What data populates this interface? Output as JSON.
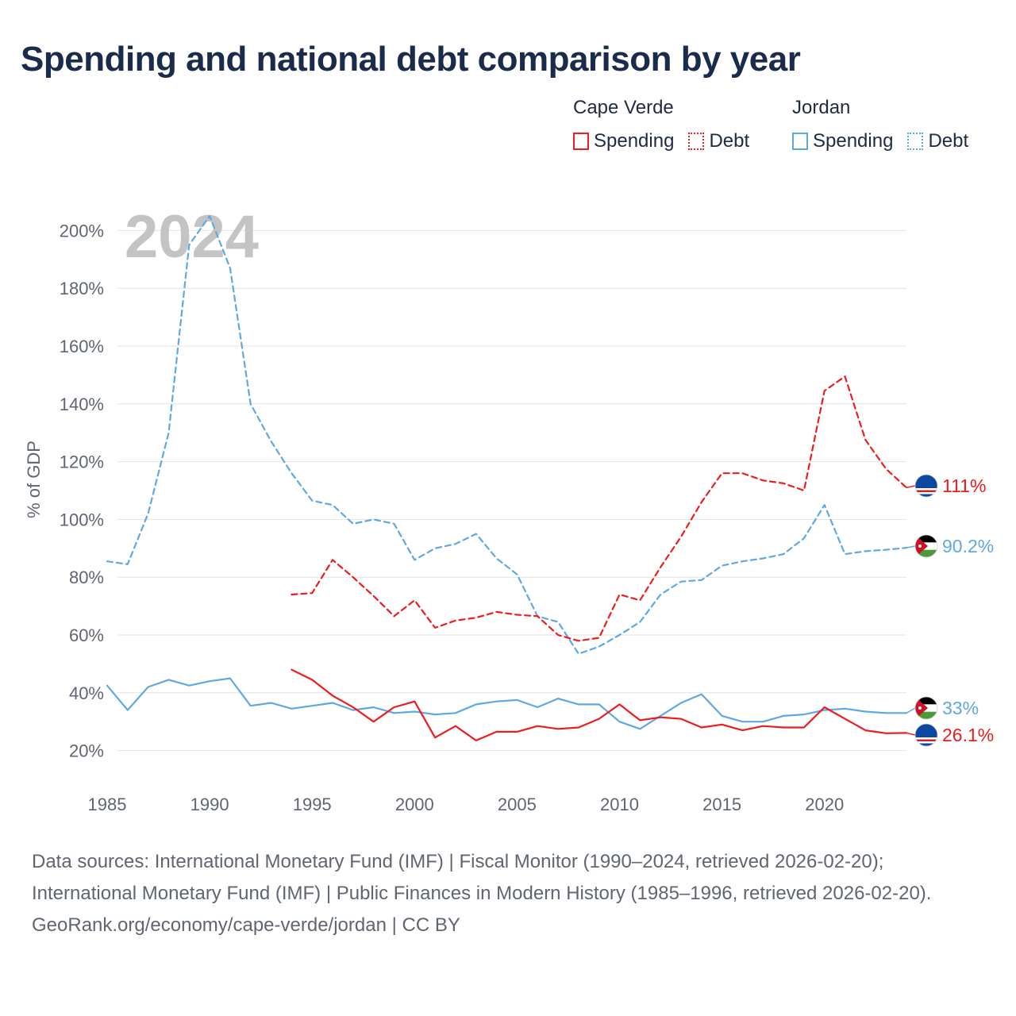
{
  "title": "Spending and national debt comparison by year",
  "legend": {
    "groups": [
      {
        "country": "Cape Verde",
        "items": [
          {
            "label": "Spending",
            "style": "solid"
          },
          {
            "label": "Debt",
            "style": "dotted"
          }
        ]
      },
      {
        "country": "Jordan",
        "items": [
          {
            "label": "Spending",
            "style": "solid"
          },
          {
            "label": "Debt",
            "style": "dotted"
          }
        ]
      }
    ]
  },
  "year_watermark": "2024",
  "footer": {
    "sources": "Data sources: International Monetary Fund (IMF) | Fiscal Monitor (1990–2024, retrieved 2026-02-20); International Monetary Fund (IMF) | Public Finances in Modern History (1985–1996, retrieved 2026-02-20).",
    "attribution": "GeoRank.org/economy/cape-verde/jordan | CC BY"
  },
  "colors": {
    "cape_verde": "#ee1c1c",
    "jordan": "#5ea8e6",
    "grid": "#e3e3e3",
    "axis_text": "#5f6670",
    "watermark": "#c4c4c4"
  },
  "chart_data": {
    "type": "line",
    "title": "Spending and national debt comparison by year",
    "xlabel": "",
    "ylabel": "% of GDP",
    "xlim": [
      1985,
      2024
    ],
    "ylim": [
      10,
      210
    ],
    "xticks": [
      1985,
      1990,
      1995,
      2000,
      2005,
      2010,
      2015,
      2020
    ],
    "yticks": [
      20,
      40,
      60,
      80,
      100,
      120,
      140,
      160,
      180,
      200
    ],
    "ytick_labels": [
      "20%",
      "40%",
      "60%",
      "80%",
      "100%",
      "120%",
      "140%",
      "160%",
      "180%",
      "200%"
    ],
    "grid": true,
    "series": [
      {
        "name": "Jordan Debt",
        "country": "Jordan",
        "metric": "Debt",
        "color": "#5ea8e6",
        "dash": "dashed",
        "end_label": "90.2%",
        "x": [
          1985,
          1986,
          1987,
          1988,
          1989,
          1990,
          1991,
          1992,
          1993,
          1994,
          1995,
          1996,
          1997,
          1998,
          1999,
          2000,
          2001,
          2002,
          2003,
          2004,
          2005,
          2006,
          2007,
          2008,
          2009,
          2010,
          2011,
          2012,
          2013,
          2014,
          2015,
          2016,
          2017,
          2018,
          2019,
          2020,
          2021,
          2022,
          2023,
          2024
        ],
        "values": [
          85.5,
          84.5,
          102,
          130,
          195,
          205,
          187,
          140,
          127,
          116,
          106.5,
          105,
          98.5,
          100,
          98.5,
          86,
          90,
          91.5,
          95,
          86.5,
          81,
          66.5,
          64.5,
          53.5,
          56,
          60,
          64.5,
          74,
          78.5,
          79,
          84,
          85.5,
          86.5,
          88,
          93.5,
          105,
          88,
          89,
          89.5,
          90.2
        ]
      },
      {
        "name": "Cape Verde Debt",
        "country": "Cape Verde",
        "metric": "Debt",
        "color": "#ee1c1c",
        "dash": "dashed",
        "end_label": "111%",
        "x": [
          1994,
          1995,
          1996,
          1997,
          1998,
          1999,
          2000,
          2001,
          2002,
          2003,
          2004,
          2005,
          2006,
          2007,
          2008,
          2009,
          2010,
          2011,
          2012,
          2013,
          2014,
          2015,
          2016,
          2017,
          2018,
          2019,
          2020,
          2021,
          2022,
          2023,
          2024
        ],
        "values": [
          74,
          74.5,
          86,
          80,
          73.5,
          66.5,
          72,
          62.5,
          65,
          66,
          68,
          67,
          66.5,
          60,
          58,
          59,
          74,
          72,
          83.5,
          94,
          106,
          116,
          116,
          113.5,
          112.5,
          110,
          144.5,
          149.5,
          127.5,
          117.5,
          111
        ]
      },
      {
        "name": "Jordan Spending",
        "country": "Jordan",
        "metric": "Spending",
        "color": "#5ea8e6",
        "dash": "solid",
        "end_label": "33%",
        "x": [
          1985,
          1986,
          1987,
          1988,
          1989,
          1990,
          1991,
          1992,
          1993,
          1994,
          1995,
          1996,
          1997,
          1998,
          1999,
          2000,
          2001,
          2002,
          2003,
          2004,
          2005,
          2006,
          2007,
          2008,
          2009,
          2010,
          2011,
          2012,
          2013,
          2014,
          2015,
          2016,
          2017,
          2018,
          2019,
          2020,
          2021,
          2022,
          2023,
          2024
        ],
        "values": [
          42.5,
          34,
          42,
          44.5,
          42.5,
          44,
          45,
          35.5,
          36.5,
          34.5,
          35.5,
          36.5,
          34,
          35,
          33,
          33.5,
          32.5,
          33,
          36,
          37,
          37.5,
          35,
          38,
          36,
          36,
          30,
          27.5,
          32,
          36.5,
          39.5,
          32,
          30,
          30,
          32,
          32.5,
          34,
          34.5,
          33.5,
          33,
          33
        ]
      },
      {
        "name": "Cape Verde Spending",
        "country": "Cape Verde",
        "metric": "Spending",
        "color": "#ee1c1c",
        "dash": "solid",
        "end_label": "26.1%",
        "x": [
          1994,
          1995,
          1996,
          1997,
          1998,
          1999,
          2000,
          2001,
          2002,
          2003,
          2004,
          2005,
          2006,
          2007,
          2008,
          2009,
          2010,
          2011,
          2012,
          2013,
          2014,
          2015,
          2016,
          2017,
          2018,
          2019,
          2020,
          2021,
          2022,
          2023,
          2024
        ],
        "values": [
          48,
          44.5,
          39,
          35,
          30,
          35,
          37,
          24.5,
          28.5,
          23.5,
          26.5,
          26.5,
          28.5,
          27.5,
          28,
          31,
          36,
          30.5,
          31.5,
          31,
          28,
          29,
          27,
          28.5,
          28,
          28,
          35,
          31,
          27,
          26,
          26.1
        ]
      }
    ]
  }
}
